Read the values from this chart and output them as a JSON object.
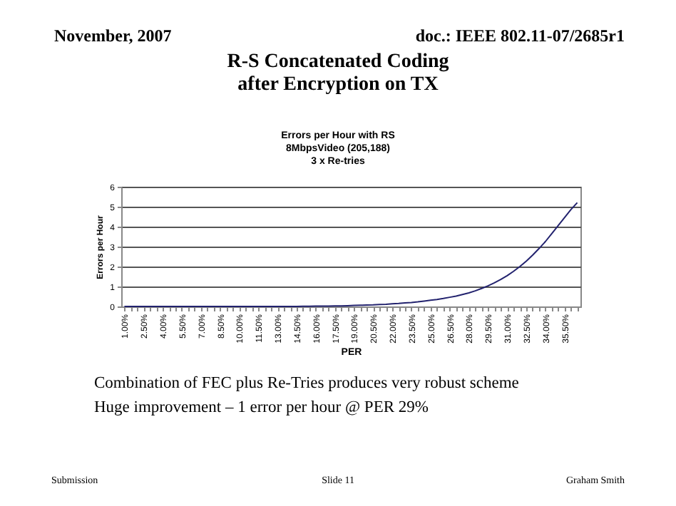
{
  "chart_data": {
    "type": "line",
    "title": "R-S Concatenated Coding\nafter Encryption on TX",
    "subtitle": "Errors per Hour with RS\n8MbpsVideo (205,188)\n3 x Re-tries",
    "xlabel": "PER",
    "ylabel": "Errors per Hour",
    "categories": [
      "1.00%",
      null,
      null,
      "2.50%",
      null,
      null,
      "4.00%",
      null,
      null,
      "5.50%",
      null,
      null,
      "7.00%",
      null,
      null,
      "8.50%",
      null,
      null,
      "10.00%",
      null,
      null,
      "11.50%",
      null,
      null,
      "13.00%",
      null,
      null,
      "14.50%",
      null,
      null,
      "16.00%",
      null,
      null,
      "17.50%",
      null,
      null,
      "19.00%",
      null,
      null,
      "20.50%",
      null,
      null,
      "22.00%",
      null,
      null,
      "23.50%",
      null,
      null,
      "25.00%",
      null,
      null,
      "26.50%",
      null,
      null,
      "28.00%",
      null,
      null,
      "29.50%",
      null,
      null,
      "31.00%",
      null,
      null,
      "32.50%",
      null,
      null,
      "34.00%",
      null,
      null,
      "35.50%",
      null,
      null
    ],
    "series": [
      {
        "color": "#22226e",
        "values": [
          0,
          0,
          0,
          0,
          0,
          0,
          0,
          0,
          0,
          0,
          0,
          0,
          0,
          0,
          0,
          0,
          0,
          0,
          0,
          0,
          0,
          0,
          0,
          0,
          0,
          0,
          0,
          0,
          0.01,
          0.01,
          0.02,
          0.02,
          0.02,
          0.03,
          0.03,
          0.04,
          0.05,
          0.06,
          0.07,
          0.08,
          0.1,
          0.11,
          0.13,
          0.15,
          0.18,
          0.2,
          0.23,
          0.27,
          0.31,
          0.35,
          0.4,
          0.46,
          0.52,
          0.6,
          0.68,
          0.78,
          0.9,
          1.03,
          1.18,
          1.35,
          1.54,
          1.76,
          2.0,
          2.27,
          2.57,
          2.9,
          3.25,
          3.65,
          4.05,
          4.45,
          4.85,
          5.2
        ]
      }
    ],
    "ylim": [
      0,
      6
    ],
    "yticks": [
      0,
      1,
      2,
      3,
      4,
      5,
      6
    ],
    "grid": "y",
    "marker": "none",
    "line_style": "solid",
    "annotations": [
      "November, 2007",
      "doc.: IEEE 802.11-07/2685r1",
      "Combination of FEC plus Re-Tries produces very robust scheme",
      "Huge improvement – 1 error per hour @ PER 29%",
      "Submission",
      "Slide 11",
      "Graham Smith"
    ]
  }
}
